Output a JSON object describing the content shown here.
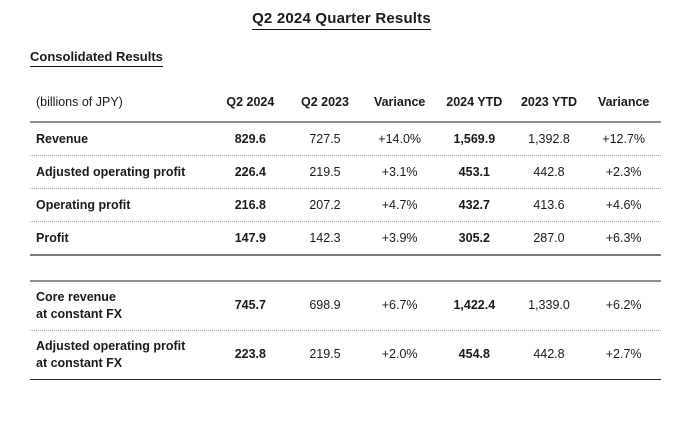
{
  "page": {
    "title": "Q2 2024 Quarter Results",
    "subtitle": "Consolidated Results"
  },
  "table": {
    "unit_label": "(billions of JPY)",
    "columns": [
      "Q2 2024",
      "Q2 2023",
      "Variance",
      "2024 YTD",
      "2023 YTD",
      "Variance"
    ],
    "rows": [
      {
        "label": "Revenue",
        "values": [
          "829.6",
          "727.5",
          "+14.0%",
          "1,569.9",
          "1,392.8",
          "+12.7%"
        ]
      },
      {
        "label": "Adjusted operating profit",
        "values": [
          "226.4",
          "219.5",
          "+3.1%",
          "453.1",
          "442.8",
          "+2.3%"
        ]
      },
      {
        "label": "Operating profit",
        "values": [
          "216.8",
          "207.2",
          "+4.7%",
          "432.7",
          "413.6",
          "+4.6%"
        ]
      },
      {
        "label": "Profit",
        "values": [
          "147.9",
          "142.3",
          "+3.9%",
          "305.2",
          "287.0",
          "+6.3%"
        ]
      },
      {
        "label_line1": "Core revenue",
        "label_line2": "at constant FX",
        "values": [
          "745.7",
          "698.9",
          "+6.7%",
          "1,422.4",
          "1,339.0",
          "+6.2%"
        ]
      },
      {
        "label_line1": "Adjusted operating profit",
        "label_line2": "at constant FX",
        "values": [
          "223.8",
          "219.5",
          "+2.0%",
          "454.8",
          "442.8",
          "+2.7%"
        ]
      }
    ]
  }
}
